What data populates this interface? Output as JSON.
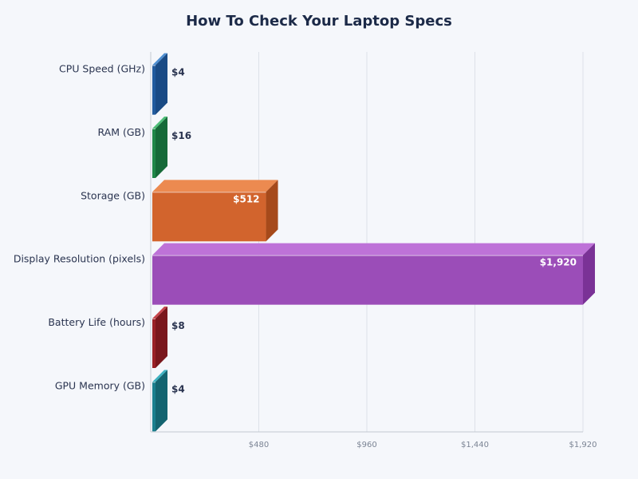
{
  "chart_data": {
    "type": "bar",
    "orientation": "horizontal",
    "style": "3d",
    "title": "How To Check Your Laptop Specs",
    "categories": [
      "CPU Speed (GHz)",
      "RAM (GB)",
      "Storage (GB)",
      "Display Resolution (pixels)",
      "Battery Life (hours)",
      "GPU Memory (GB)"
    ],
    "values": [
      4,
      16,
      512,
      1920,
      8,
      4
    ],
    "data_labels": [
      "$4",
      "$16",
      "$512",
      "$1,920",
      "$8",
      "$4"
    ],
    "colors": [
      "#225b9e",
      "#1f8748",
      "#d2642d",
      "#9b4db8",
      "#9a2026",
      "#1a7f8e"
    ],
    "top_colors": [
      "#4f8fd1",
      "#4fbf79",
      "#ec8a50",
      "#be72d8",
      "#c7474d",
      "#3fb3c2"
    ],
    "side_colors": [
      "#1a4b85",
      "#166a38",
      "#a64a1b",
      "#7a3296",
      "#7a171c",
      "#136470"
    ],
    "xlim": [
      0,
      1920
    ],
    "x_ticks": [
      480,
      960,
      1440,
      1920
    ],
    "x_tick_labels": [
      "$480",
      "$960",
      "$1,440",
      "$1,920"
    ],
    "grid": true,
    "legend": "none"
  }
}
